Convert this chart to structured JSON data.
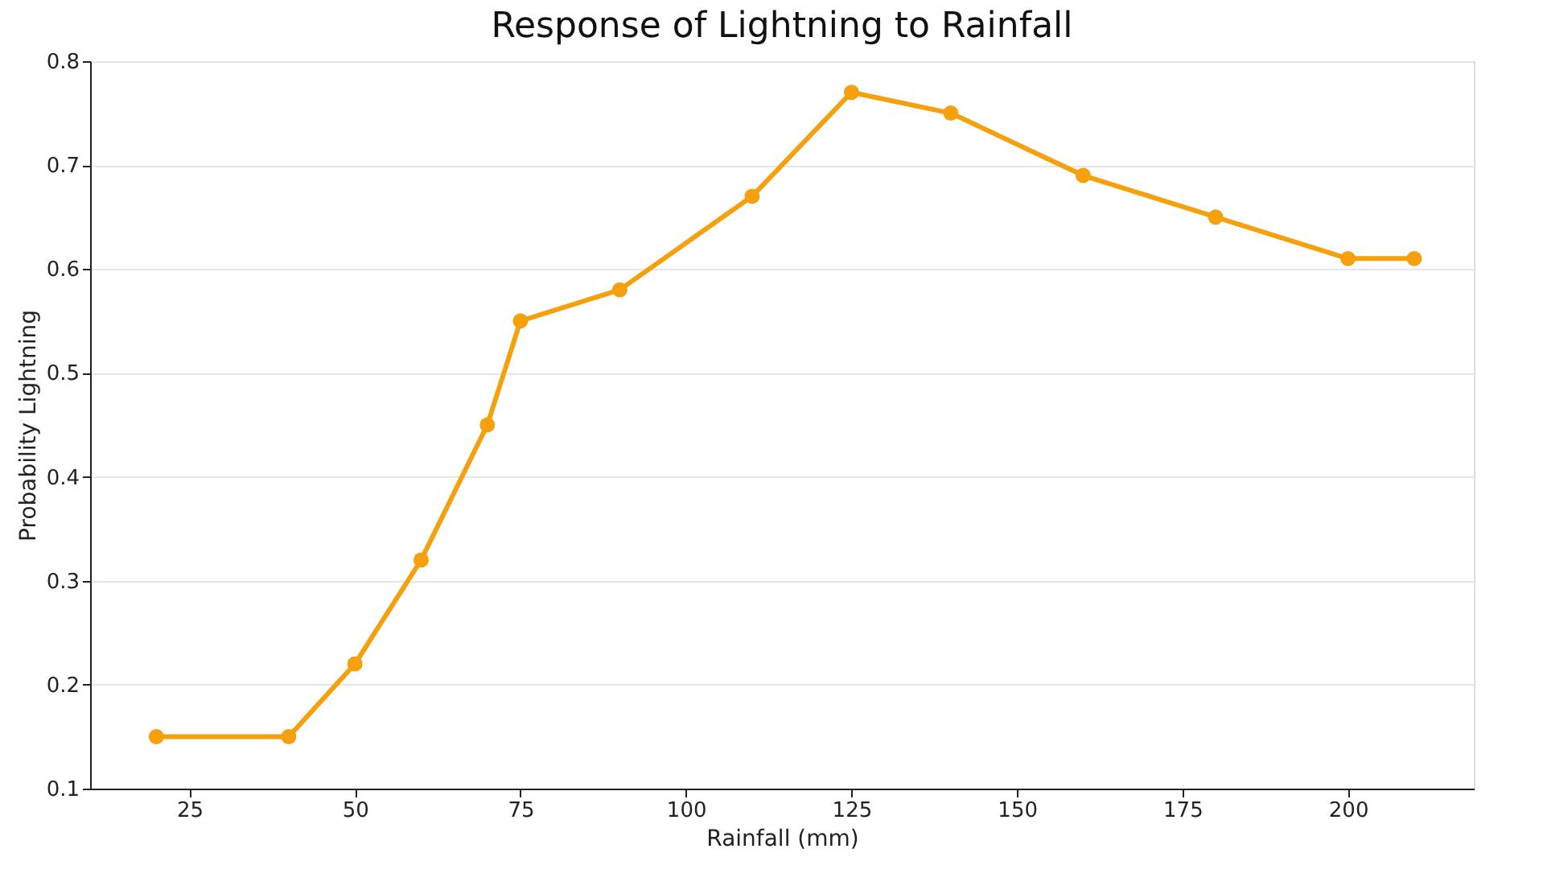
{
  "chart_data": {
    "type": "line",
    "title": "Response of Lightning to Rainfall",
    "xlabel": "Rainfall (mm)",
    "ylabel": "Probability Lightning",
    "x": [
      20,
      40,
      50,
      60,
      70,
      75,
      90,
      110,
      125,
      140,
      160,
      180,
      200,
      210
    ],
    "series": [
      {
        "color": "#f5a00c",
        "values": [
          0.15,
          0.15,
          0.22,
          0.32,
          0.45,
          0.55,
          0.58,
          0.67,
          0.77,
          0.75,
          0.69,
          0.65,
          0.61,
          0.61
        ]
      }
    ],
    "xlim": [
      10,
      219
    ],
    "xticks": [
      25,
      50,
      75,
      100,
      125,
      150,
      175,
      200
    ],
    "ylim": [
      0.1,
      0.8
    ],
    "yticks": [
      0.1,
      0.2,
      0.3,
      0.4,
      0.5,
      0.6,
      0.7,
      0.8
    ],
    "grid": "y",
    "marker": "circle",
    "line_style": "solid"
  }
}
